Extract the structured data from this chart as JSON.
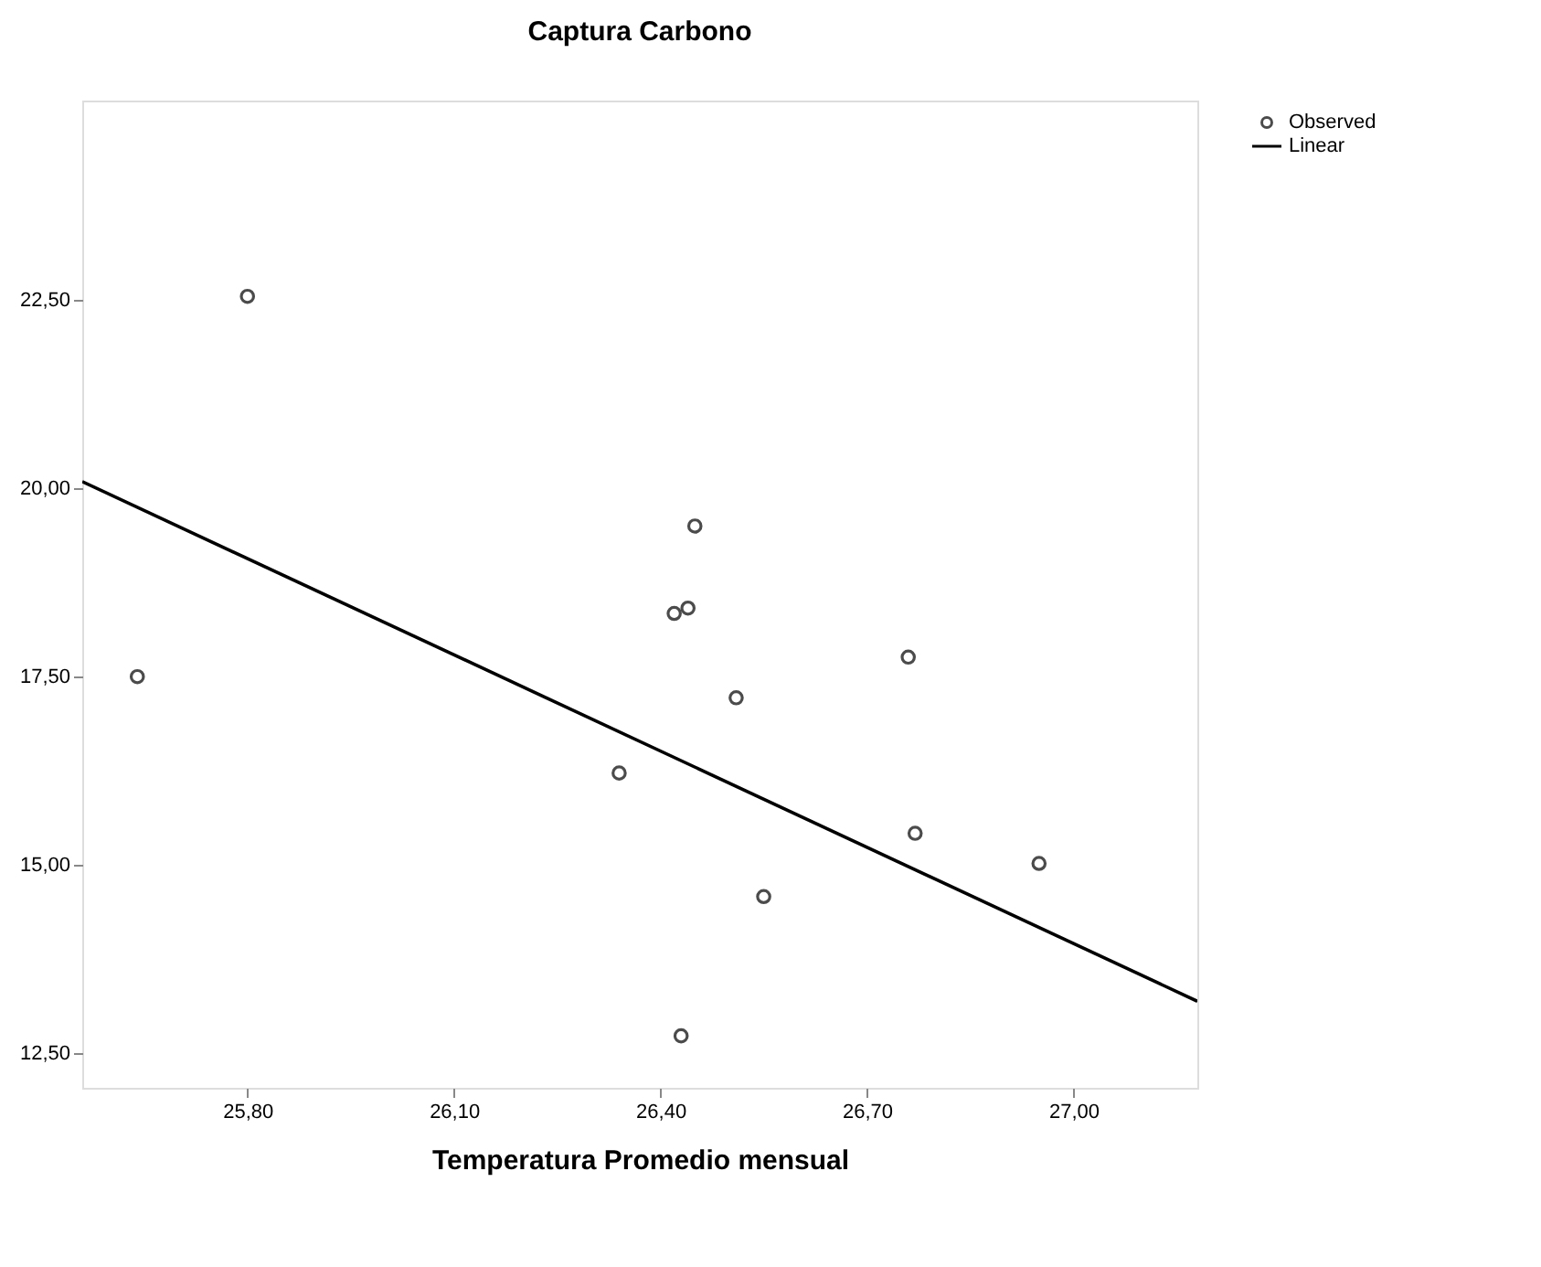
{
  "chart_data": {
    "type": "scatter",
    "title": "Captura Carbono",
    "xlabel": "Temperatura Promedio mensual",
    "legend": "top right",
    "grid": false,
    "xlim": [
      25.56,
      27.18
    ],
    "ylim": [
      12.04,
      25.15
    ],
    "xticks": [
      {
        "value": 25.8,
        "label": "25,80"
      },
      {
        "value": 26.1,
        "label": "26,10"
      },
      {
        "value": 26.4,
        "label": "26,40"
      },
      {
        "value": 26.7,
        "label": "26,70"
      },
      {
        "value": 27.0,
        "label": "27,00"
      }
    ],
    "yticks": [
      {
        "value": 12.5,
        "label": "12,50"
      },
      {
        "value": 15.0,
        "label": "15,00"
      },
      {
        "value": 17.5,
        "label": "17,50"
      },
      {
        "value": 20.0,
        "label": "20,00"
      },
      {
        "value": 22.5,
        "label": "22,50"
      }
    ],
    "series": [
      {
        "name": "Observed",
        "marker": "circle",
        "color": "#000000",
        "x": [
          25.64,
          25.8,
          26.34,
          26.42,
          26.44,
          26.45,
          26.51,
          26.43,
          26.55,
          26.76,
          26.77,
          26.95
        ],
        "values": [
          17.5,
          22.55,
          16.22,
          18.34,
          18.41,
          19.5,
          17.22,
          12.73,
          14.58,
          17.76,
          15.42,
          15.02
        ]
      },
      {
        "name": "Linear",
        "type": "line",
        "line_style": "solid",
        "color": "#000000",
        "x": [
          25.56,
          27.18
        ],
        "values": [
          20.09,
          13.19
        ]
      }
    ]
  }
}
